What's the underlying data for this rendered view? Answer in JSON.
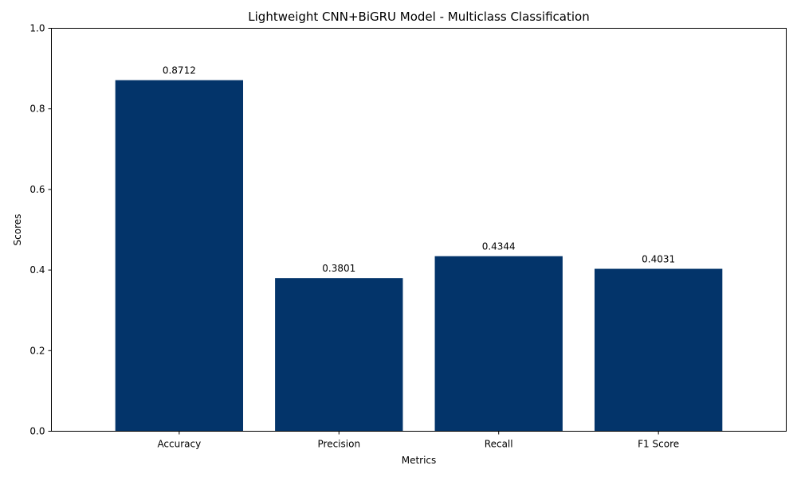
{
  "chart_data": {
    "type": "bar",
    "title": "Lightweight CNN+BiGRU Model - Multiclass Classification",
    "xlabel": "Metrics",
    "ylabel": "Scores",
    "categories": [
      "Accuracy",
      "Precision",
      "Recall",
      "F1 Score"
    ],
    "values": [
      0.8712,
      0.3801,
      0.4344,
      0.4031
    ],
    "data_labels": [
      "0.8712",
      "0.3801",
      "0.4344",
      "0.4031"
    ],
    "ylim": [
      0,
      1.0
    ],
    "yticks": [
      0.0,
      0.2,
      0.4,
      0.6,
      0.8,
      1.0
    ],
    "ytick_labels": [
      "0.0",
      "0.2",
      "0.4",
      "0.6",
      "0.8",
      "1.0"
    ],
    "grid": false,
    "legend": "none",
    "bar_color": "#03346a"
  }
}
